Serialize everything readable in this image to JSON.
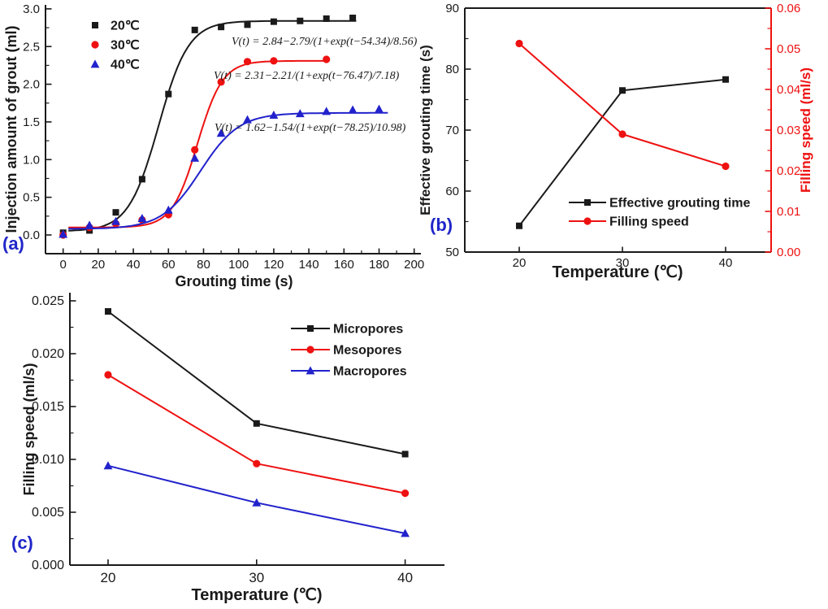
{
  "figure": {
    "background": "#ffffff",
    "panel_label_color": "#2026c8",
    "black": "#1a1a1a",
    "red": "#ee1111",
    "blue": "#2222cc"
  },
  "panels": {
    "a": "(a)",
    "b": "(b)",
    "c": "(c)"
  },
  "chart_data": [
    {
      "id": "a",
      "type": "line",
      "xlabel": "Grouting time (s)",
      "ylabel": "Injection amount of grout (ml)",
      "xlim": [
        -10,
        205
      ],
      "ylim": [
        -0.25,
        3.0
      ],
      "xticks": [
        "0",
        "20",
        "40",
        "60",
        "80",
        "100",
        "120",
        "140",
        "160",
        "180",
        "200"
      ],
      "yticks": [
        "0.0",
        "0.5",
        "1.0",
        "1.5",
        "2.0",
        "2.5",
        "3.0"
      ],
      "grid": false,
      "legend_position": "top-left-inside",
      "series": [
        {
          "name": "20℃",
          "color": "#1a1a1a",
          "marker": "square",
          "x": [
            0,
            15,
            30,
            45,
            60,
            75,
            90,
            105,
            120,
            135,
            150,
            165
          ],
          "y": [
            0.03,
            0.06,
            0.3,
            0.74,
            1.87,
            2.72,
            2.76,
            2.79,
            2.83,
            2.84,
            2.87,
            2.88
          ],
          "fit": {
            "plateau": 2.84,
            "amplitude": 2.79,
            "center": 54.34,
            "width": 8.56,
            "t_range": [
              3,
              167
            ]
          }
        },
        {
          "name": "30℃",
          "color": "#ee1111",
          "marker": "circle",
          "x": [
            0,
            15,
            30,
            45,
            60,
            75,
            90,
            105,
            120,
            150
          ],
          "y": [
            0.0,
            0.1,
            0.15,
            0.2,
            0.27,
            1.13,
            2.03,
            2.3,
            2.31,
            2.33
          ],
          "fit": {
            "plateau": 2.31,
            "amplitude": 2.21,
            "center": 76.47,
            "width": 7.18,
            "t_range": [
              3,
              151
            ]
          }
        },
        {
          "name": "40℃",
          "color": "#2222cc",
          "marker": "triangle",
          "x": [
            0,
            15,
            30,
            45,
            60,
            75,
            90,
            105,
            120,
            135,
            150,
            165,
            180
          ],
          "y": [
            0.01,
            0.13,
            0.18,
            0.22,
            0.33,
            1.02,
            1.35,
            1.53,
            1.59,
            1.61,
            1.64,
            1.66,
            1.67
          ],
          "fit": {
            "plateau": 1.62,
            "amplitude": 1.54,
            "center": 78.25,
            "width": 10.98,
            "t_range": [
              3,
              186
            ]
          }
        }
      ],
      "equations": [
        "V(t) = 2.84−2.79/(1+exp(t−54.34)/8.56)",
        "V(t) = 2.31−2.21/(1+exp(t−76.47)/7.18)",
        "V(t) = 1.62−1.54/(1+exp(t−78.25)/10.98)"
      ]
    },
    {
      "id": "b",
      "type": "line-dual-axis",
      "xlabel": "Temperature (℃)",
      "x": [
        20,
        30,
        40
      ],
      "xticks": [
        "20",
        "30",
        "40"
      ],
      "left_axis": {
        "label": "Effective grouting time (s)",
        "color": "#1a1a1a",
        "range": [
          50,
          90
        ],
        "ticks": [
          "50",
          "60",
          "70",
          "80",
          "90"
        ]
      },
      "right_axis": {
        "label": "Filling speed (ml/s)",
        "color": "#ee1111",
        "range": [
          0,
          0.06
        ],
        "ticks": [
          "0.00",
          "0.01",
          "0.02",
          "0.03",
          "0.04",
          "0.05",
          "0.06"
        ]
      },
      "grid": false,
      "legend_position": "bottom-right-inside",
      "series": [
        {
          "name": "Effective grouting time",
          "axis": "left",
          "color": "#1a1a1a",
          "marker": "square",
          "values": [
            54.3,
            76.5,
            78.3
          ]
        },
        {
          "name": "Filling speed",
          "axis": "right",
          "color": "#ee1111",
          "marker": "circle",
          "values": [
            0.0513,
            0.029,
            0.0211
          ]
        }
      ]
    },
    {
      "id": "c",
      "type": "line",
      "xlabel": "Temperature (℃)",
      "ylabel": "Filling speed (ml/s)",
      "x": [
        20,
        30,
        40
      ],
      "xticks": [
        "20",
        "30",
        "40"
      ],
      "ylim": [
        0,
        0.025
      ],
      "yticks": [
        "0.000",
        "0.005",
        "0.010",
        "0.015",
        "0.020",
        "0.025"
      ],
      "grid": false,
      "legend_position": "top-right-inside",
      "series": [
        {
          "name": "Micropores",
          "color": "#1a1a1a",
          "marker": "square",
          "values": [
            0.024,
            0.0134,
            0.0105
          ]
        },
        {
          "name": "Mesopores",
          "color": "#ee1111",
          "marker": "circle",
          "values": [
            0.018,
            0.0096,
            0.0068
          ]
        },
        {
          "name": "Macropores",
          "color": "#2222cc",
          "marker": "triangle",
          "values": [
            0.0094,
            0.0059,
            0.003
          ]
        }
      ]
    }
  ]
}
